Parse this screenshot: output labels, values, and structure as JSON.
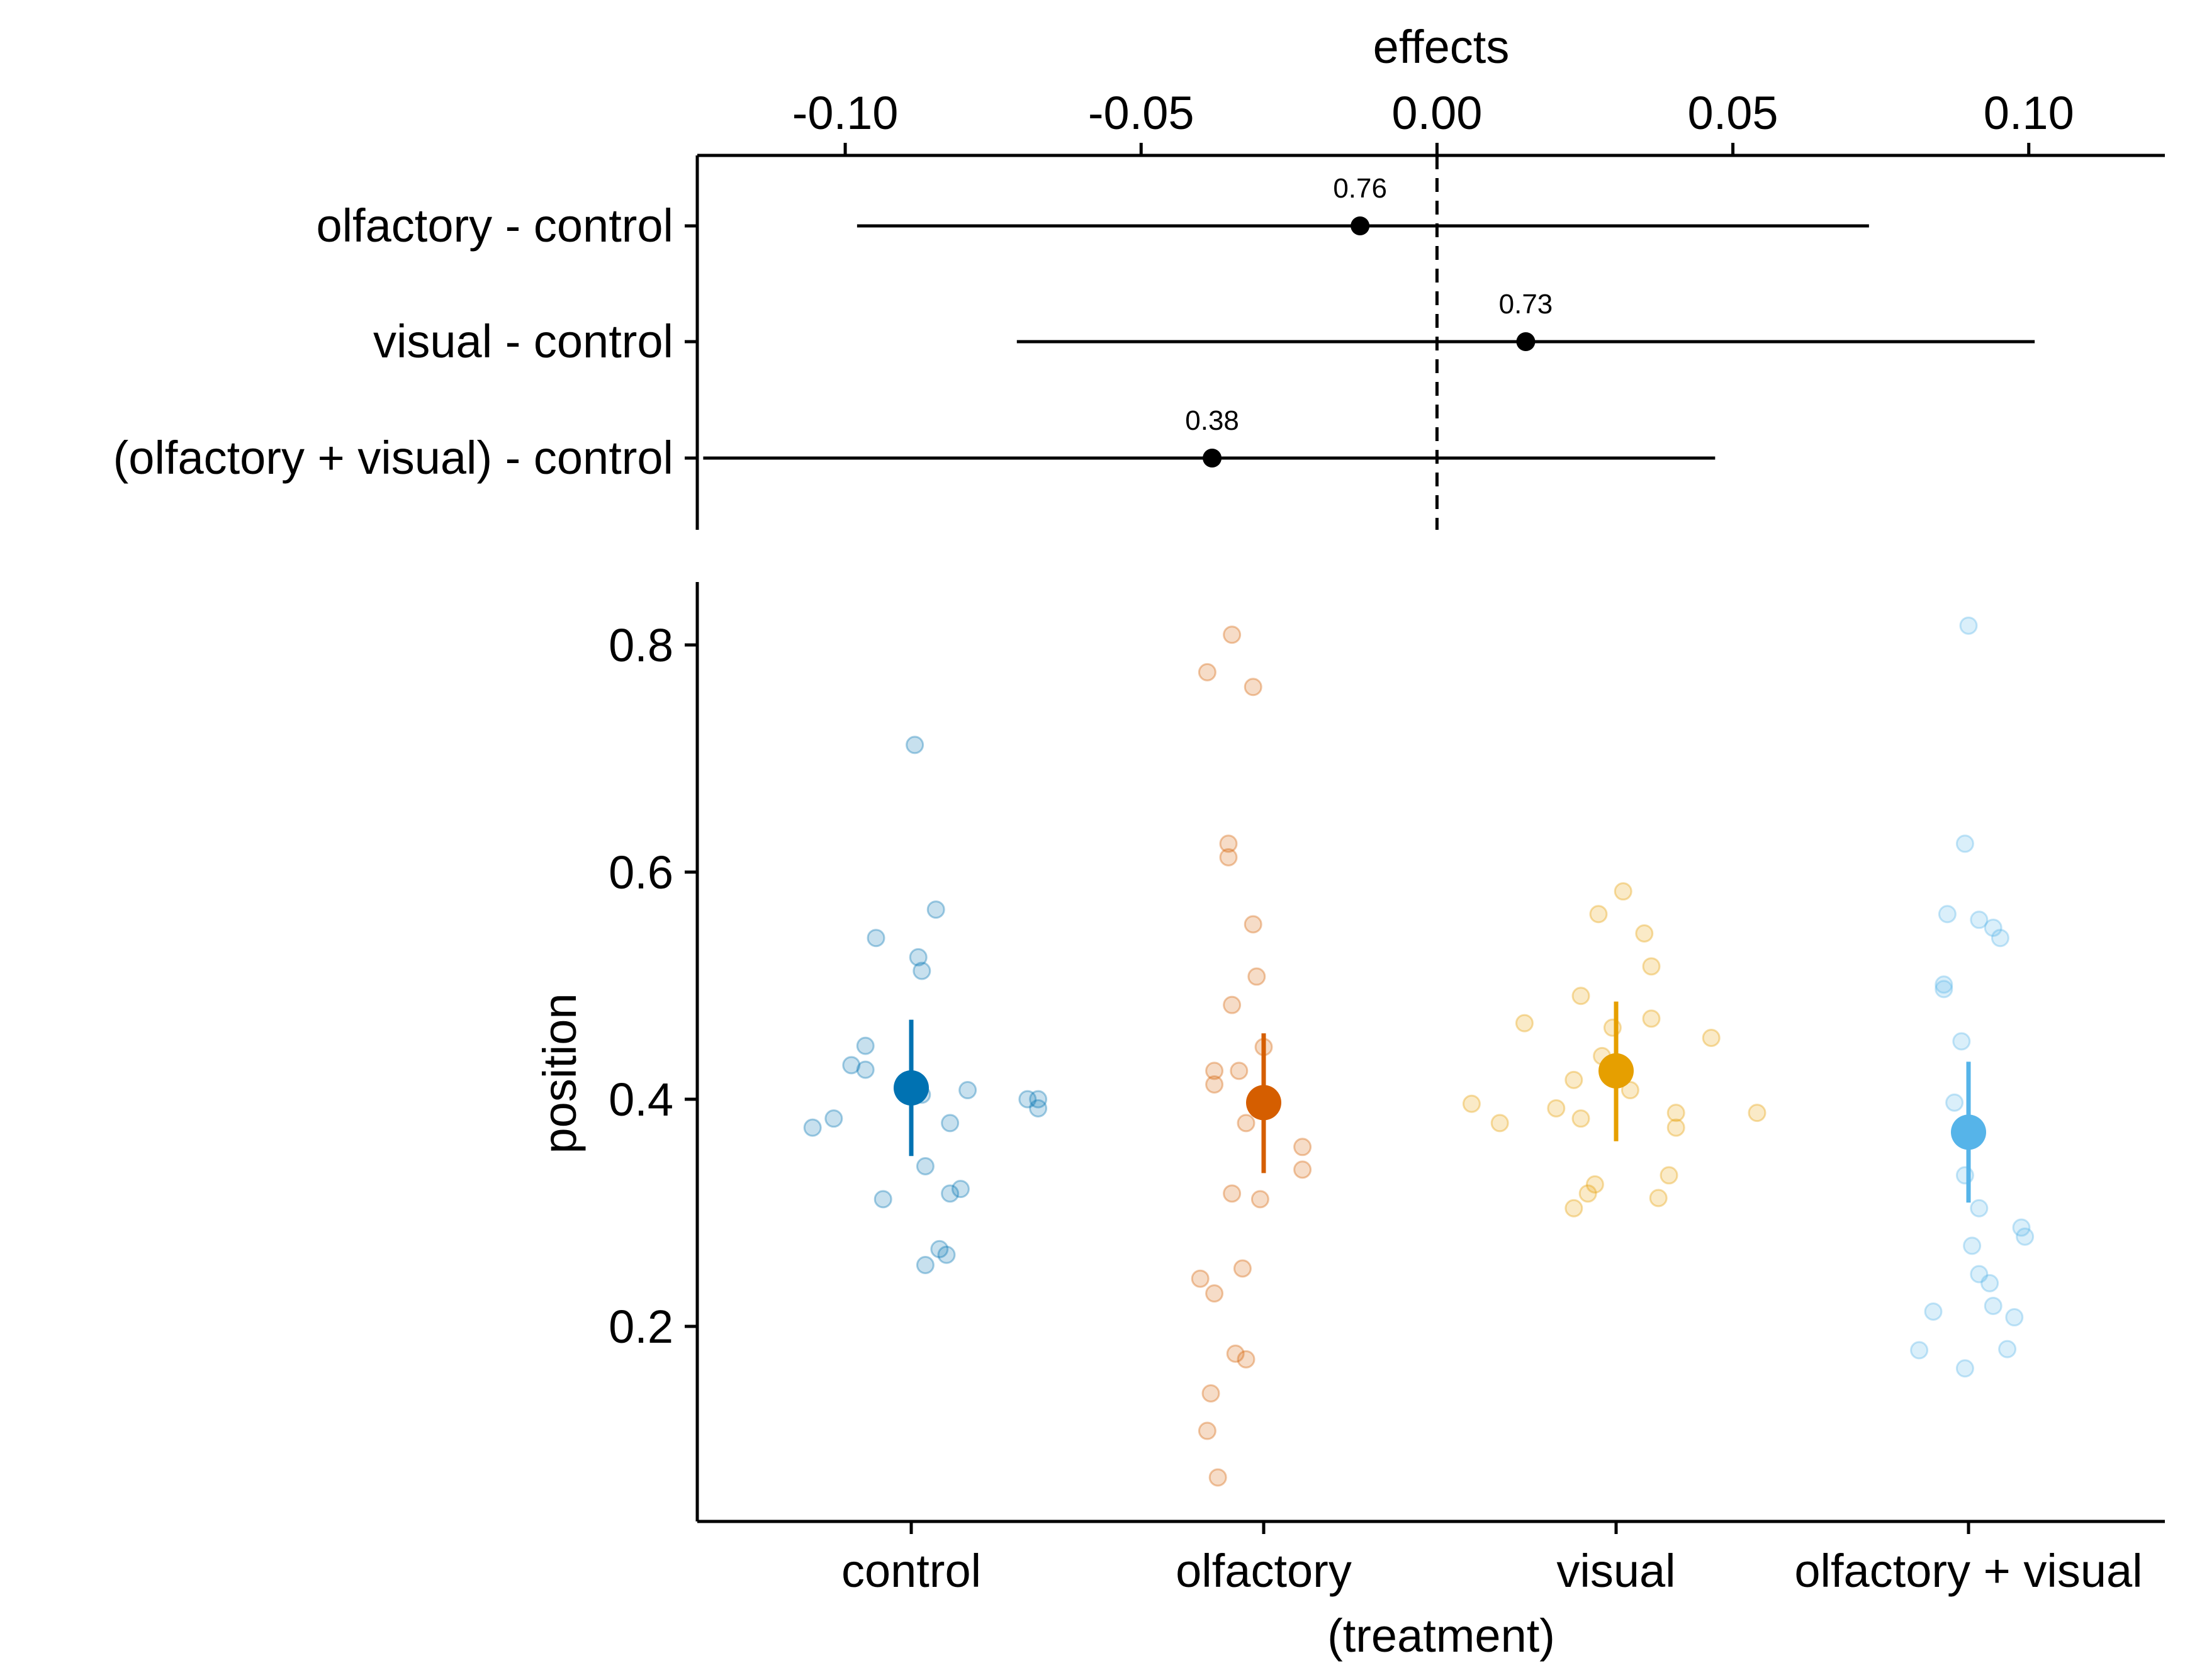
{
  "chart_data": [
    {
      "type": "forest",
      "xlabel": "effects",
      "xlim": [
        -0.125,
        0.123
      ],
      "x_ticks": [
        -0.1,
        -0.05,
        0.0,
        0.05,
        0.1
      ],
      "x_tick_labels": [
        "-0.10",
        "-0.05",
        "0.00",
        "0.05",
        "0.10"
      ],
      "reference_line": 0.0,
      "rows": [
        {
          "label": "olfactory - control",
          "estimate": -0.013,
          "lower": -0.098,
          "upper": 0.073,
          "p_label": "0.76"
        },
        {
          "label": "visual - control",
          "estimate": 0.015,
          "lower": -0.071,
          "upper": 0.101,
          "p_label": "0.73"
        },
        {
          "label": "(olfactory + visual) - control",
          "estimate": -0.038,
          "lower": -0.124,
          "upper": 0.047,
          "p_label": "0.38"
        }
      ]
    },
    {
      "type": "scatter",
      "xlabel": "(treatment)",
      "ylabel": "position",
      "ylim": [
        0.04,
        0.86
      ],
      "y_ticks": [
        0.2,
        0.4,
        0.6,
        0.8
      ],
      "y_tick_labels": [
        "0.2",
        "0.4",
        "0.6",
        "0.8"
      ],
      "categories": [
        "control",
        "olfactory",
        "visual",
        "olfactory + visual"
      ],
      "series": [
        {
          "name": "control",
          "color": "#0072B2",
          "mean": 0.41,
          "lower": 0.35,
          "upper": 0.47,
          "points": [
            [
              -0.28,
              0.375
            ],
            [
              -0.22,
              0.383
            ],
            [
              -0.17,
              0.43
            ],
            [
              -0.13,
              0.447
            ],
            [
              -0.13,
              0.426
            ],
            [
              -0.1,
              0.542
            ],
            [
              -0.08,
              0.312
            ],
            [
              0.01,
              0.712
            ],
            [
              0.02,
              0.525
            ],
            [
              0.03,
              0.513
            ],
            [
              0.03,
              0.404
            ],
            [
              0.04,
              0.341
            ],
            [
              0.04,
              0.254
            ],
            [
              0.07,
              0.567
            ],
            [
              0.08,
              0.268
            ],
            [
              0.1,
              0.263
            ],
            [
              0.11,
              0.379
            ],
            [
              0.11,
              0.317
            ],
            [
              0.14,
              0.321
            ],
            [
              0.16,
              0.408
            ],
            [
              0.33,
              0.4
            ],
            [
              0.36,
              0.4
            ],
            [
              0.36,
              0.392
            ]
          ]
        },
        {
          "name": "olfactory",
          "color": "#D55E00",
          "mean": 0.397,
          "lower": 0.335,
          "upper": 0.458,
          "points": [
            [
              -0.18,
              0.242
            ],
            [
              -0.16,
              0.776
            ],
            [
              -0.15,
              0.141
            ],
            [
              -0.14,
              0.425
            ],
            [
              -0.14,
              0.413
            ],
            [
              -0.14,
              0.229
            ],
            [
              -0.16,
              0.108
            ],
            [
              -0.13,
              0.067
            ],
            [
              -0.1,
              0.625
            ],
            [
              -0.1,
              0.613
            ],
            [
              -0.09,
              0.809
            ],
            [
              -0.09,
              0.483
            ],
            [
              -0.09,
              0.317
            ],
            [
              -0.08,
              0.176
            ],
            [
              -0.07,
              0.425
            ],
            [
              -0.05,
              0.379
            ],
            [
              -0.06,
              0.251
            ],
            [
              -0.05,
              0.171
            ],
            [
              -0.03,
              0.554
            ],
            [
              -0.03,
              0.763
            ],
            [
              -0.02,
              0.508
            ],
            [
              -0.01,
              0.312
            ],
            [
              0.0,
              0.446
            ],
            [
              0.11,
              0.358
            ],
            [
              0.11,
              0.338
            ]
          ]
        },
        {
          "name": "visual",
          "color": "#E69F00",
          "mean": 0.425,
          "lower": 0.363,
          "upper": 0.486,
          "points": [
            [
              -0.41,
              0.396
            ],
            [
              -0.33,
              0.379
            ],
            [
              -0.26,
              0.467
            ],
            [
              -0.17,
              0.392
            ],
            [
              -0.12,
              0.417
            ],
            [
              -0.12,
              0.304
            ],
            [
              -0.1,
              0.491
            ],
            [
              -0.1,
              0.383
            ],
            [
              -0.08,
              0.317
            ],
            [
              -0.06,
              0.325
            ],
            [
              -0.05,
              0.563
            ],
            [
              -0.04,
              0.438
            ],
            [
              -0.01,
              0.463
            ],
            [
              0.02,
              0.583
            ],
            [
              0.04,
              0.408
            ],
            [
              0.08,
              0.546
            ],
            [
              0.1,
              0.517
            ],
            [
              0.1,
              0.471
            ],
            [
              0.12,
              0.313
            ],
            [
              0.15,
              0.333
            ],
            [
              0.17,
              0.388
            ],
            [
              0.17,
              0.375
            ],
            [
              0.27,
              0.454
            ],
            [
              0.4,
              0.388
            ]
          ]
        },
        {
          "name": "olfactory + visual",
          "color": "#56B4E9",
          "mean": 0.371,
          "lower": 0.309,
          "upper": 0.433,
          "points": [
            [
              -0.14,
              0.179
            ],
            [
              -0.1,
              0.213
            ],
            [
              -0.07,
              0.497
            ],
            [
              -0.07,
              0.501
            ],
            [
              -0.06,
              0.563
            ],
            [
              -0.04,
              0.397
            ],
            [
              -0.02,
              0.451
            ],
            [
              -0.01,
              0.333
            ],
            [
              0.0,
              0.817
            ],
            [
              -0.01,
              0.625
            ],
            [
              -0.01,
              0.163
            ],
            [
              0.01,
              0.271
            ],
            [
              0.03,
              0.246
            ],
            [
              0.03,
              0.304
            ],
            [
              0.03,
              0.558
            ],
            [
              0.06,
              0.238
            ],
            [
              0.07,
              0.551
            ],
            [
              0.07,
              0.218
            ],
            [
              0.09,
              0.542
            ],
            [
              0.11,
              0.18
            ],
            [
              0.13,
              0.208
            ],
            [
              0.15,
              0.287
            ],
            [
              0.16,
              0.279
            ]
          ]
        }
      ]
    }
  ]
}
